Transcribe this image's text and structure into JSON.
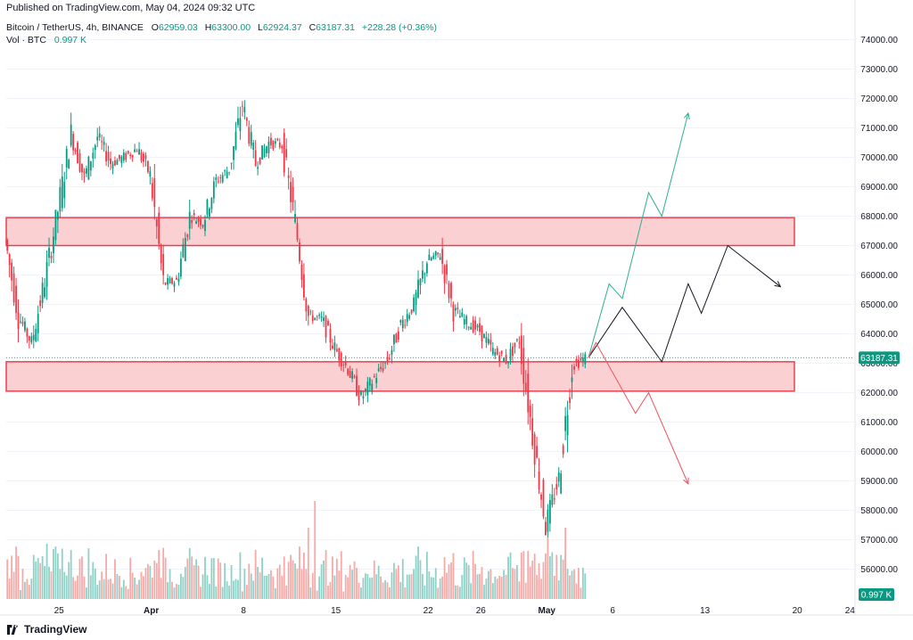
{
  "published": "Published on TradingView.com, May 04, 2024 09:32 UTC",
  "legend": {
    "symbol": "Bitcoin / TetherUS, 4h, BINANCE",
    "open_label": "O",
    "open": "62959.03",
    "high_label": "H",
    "high": "63300.00",
    "low_label": "L",
    "low": "62924.37",
    "close_label": "C",
    "close": "63187.31",
    "change": "+228.28 (+0.36%)",
    "vol_label": "Vol · BTC",
    "vol_value": "0.997 K"
  },
  "footer_brand": "TradingView",
  "colors": {
    "up": "#089981",
    "down": "#f23645",
    "vol_up": "#8fd1c7",
    "vol_down": "#f7a9a7",
    "zone_fill": "#fbd0d2",
    "zone_stroke": "#e8404b",
    "proj_green": "#2fae8f",
    "proj_black": "#131722",
    "proj_red": "#f0505a",
    "price_line": "#26a69a"
  },
  "chart_data": {
    "type": "candlestick",
    "title": "Bitcoin / TetherUS, 4h, BINANCE",
    "ylim": [
      55500,
      74500
    ],
    "y_ticks": [
      "56000.00",
      "57000.00",
      "58000.00",
      "59000.00",
      "60000.00",
      "61000.00",
      "62000.00",
      "63000.00",
      "64000.00",
      "65000.00",
      "66000.00",
      "67000.00",
      "68000.00",
      "69000.00",
      "70000.00",
      "71000.00",
      "72000.00",
      "73000.00",
      "74000.00"
    ],
    "x_ticks": [
      "25",
      "Apr",
      "8",
      "15",
      "22",
      "26",
      "May",
      "6",
      "13",
      "20",
      "24"
    ],
    "current_price": "63187.31",
    "volume_label": "0.997 K",
    "price_path": [
      [
        "2024-03-21",
        67200
      ],
      [
        "2024-03-22",
        64600
      ],
      [
        "2024-03-23",
        63700
      ],
      [
        "2024-03-24",
        65800
      ],
      [
        "2024-03-25",
        68200
      ],
      [
        "2024-03-26",
        70800
      ],
      [
        "2024-03-27",
        69300
      ],
      [
        "2024-03-28",
        70700
      ],
      [
        "2024-03-29",
        69800
      ],
      [
        "2024-03-30",
        70000
      ],
      [
        "2024-03-31",
        70300
      ],
      [
        "2024-04-01",
        69400
      ],
      [
        "2024-04-02",
        65700
      ],
      [
        "2024-04-03",
        65800
      ],
      [
        "2024-04-04",
        68000
      ],
      [
        "2024-04-05",
        67800
      ],
      [
        "2024-04-06",
        69200
      ],
      [
        "2024-04-07",
        69600
      ],
      [
        "2024-04-08",
        71800
      ],
      [
        "2024-04-09",
        69800
      ],
      [
        "2024-04-10",
        70500
      ],
      [
        "2024-04-11",
        70400
      ],
      [
        "2024-04-12",
        67800
      ],
      [
        "2024-04-13",
        64600
      ],
      [
        "2024-04-14",
        64500
      ],
      [
        "2024-04-15",
        63500
      ],
      [
        "2024-04-16",
        62800
      ],
      [
        "2024-04-17",
        61800
      ],
      [
        "2024-04-18",
        62500
      ],
      [
        "2024-04-19",
        63100
      ],
      [
        "2024-04-20",
        64300
      ],
      [
        "2024-04-21",
        65000
      ],
      [
        "2024-04-22",
        66500
      ],
      [
        "2024-04-23",
        66700
      ],
      [
        "2024-04-24",
        64800
      ],
      [
        "2024-04-25",
        64400
      ],
      [
        "2024-04-26",
        64100
      ],
      [
        "2024-04-27",
        63400
      ],
      [
        "2024-04-28",
        63100
      ],
      [
        "2024-04-29",
        63800
      ],
      [
        "2024-04-30",
        60600
      ],
      [
        "2024-05-01",
        57500
      ],
      [
        "2024-05-02",
        59100
      ],
      [
        "2024-05-03",
        62900
      ],
      [
        "2024-05-04",
        63187
      ]
    ],
    "zones": [
      {
        "from": 67000,
        "to": 67950
      },
      {
        "from": 62050,
        "to": 63050
      }
    ],
    "projections": [
      {
        "points": [
          [
            "2024-05-04",
            63187
          ],
          [
            "2024-05-06",
            65700
          ],
          [
            "2024-05-07",
            65200
          ],
          [
            "2024-05-09",
            68800
          ],
          [
            "2024-05-10",
            68000
          ],
          [
            "2024-05-12",
            71500
          ]
        ]
      },
      {
        "points": [
          [
            "2024-05-04",
            63187
          ],
          [
            "2024-05-07",
            64900
          ],
          [
            "2024-05-10",
            63050
          ],
          [
            "2024-05-12",
            65700
          ],
          [
            "2024-05-13",
            64700
          ],
          [
            "2024-05-15",
            67000
          ],
          [
            "2024-05-19",
            65600
          ]
        ]
      },
      {
        "points": [
          [
            "2024-05-04",
            63187
          ],
          [
            "2024-05-05",
            63700
          ],
          [
            "2024-05-08",
            61300
          ],
          [
            "2024-05-09",
            62000
          ],
          [
            "2024-05-12",
            58900
          ]
        ]
      }
    ]
  }
}
